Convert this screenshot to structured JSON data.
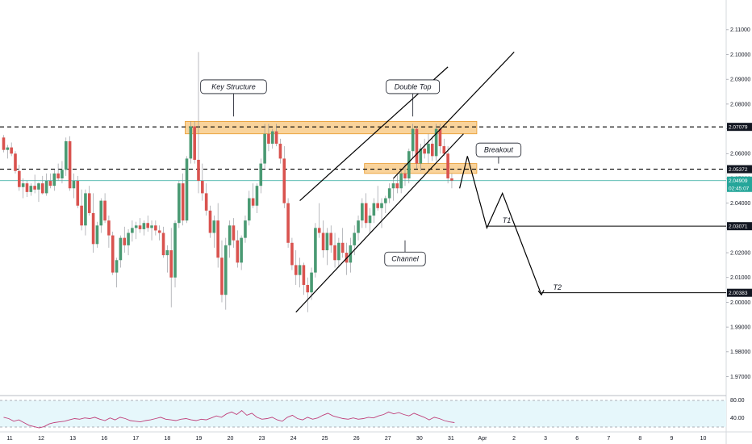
{
  "colors": {
    "bull": "#4a9a73",
    "bear": "#d9534f",
    "zone_fill": "#f7c47a",
    "zone_stroke": "#e89a2c",
    "rsi_line": "#c0407a",
    "rsi_fill": "#e6f7fb",
    "current_price": "#26a69a",
    "drawing": "#000000"
  },
  "chart_data": {
    "type": "candlestick",
    "instrument_axis": {
      "y_min": 1.963,
      "y_max": 2.122,
      "ticks": [
        "2.11000",
        "2.10000",
        "2.09000",
        "2.08000",
        "2.07000",
        "2.06000",
        "2.05000",
        "2.04000",
        "2.03000",
        "2.02000",
        "2.01000",
        "2.00000",
        "1.99000",
        "1.98000",
        "1.97000"
      ],
      "tick_values": [
        2.11,
        2.1,
        2.09,
        2.08,
        2.07,
        2.06,
        2.05,
        2.04,
        2.03,
        2.02,
        2.01,
        2.0,
        1.99,
        1.98,
        1.97
      ]
    },
    "x_axis": {
      "labels": [
        "11",
        "12",
        "13",
        "16",
        "17",
        "18",
        "19",
        "20",
        "23",
        "24",
        "25",
        "26",
        "27",
        "30",
        "31",
        "Apr",
        "2",
        "3",
        "6",
        "7",
        "8",
        "9",
        "10"
      ],
      "label_index": [
        0,
        8,
        16,
        24,
        32,
        40,
        48,
        56,
        64,
        72,
        80,
        88,
        96,
        104,
        112,
        120,
        128,
        136,
        144,
        152,
        160,
        168,
        176
      ]
    },
    "candles": [
      [
        2.0665,
        2.0675,
        2.0605,
        2.0615
      ],
      [
        2.0615,
        2.0635,
        2.058,
        2.0625
      ],
      [
        2.0625,
        2.0645,
        2.059,
        2.06
      ],
      [
        2.06,
        2.061,
        2.052,
        2.053
      ],
      [
        2.053,
        2.0555,
        2.045,
        2.0465
      ],
      [
        2.0465,
        2.05,
        2.042,
        2.048
      ],
      [
        2.048,
        2.049,
        2.0425,
        2.0445
      ],
      [
        2.0445,
        2.048,
        2.043,
        2.047
      ],
      [
        2.047,
        2.0515,
        2.044,
        2.0455
      ],
      [
        2.0455,
        2.0485,
        2.0405,
        2.048
      ],
      [
        2.048,
        2.051,
        2.0435,
        2.044
      ],
      [
        2.044,
        2.052,
        2.043,
        2.049
      ],
      [
        2.049,
        2.052,
        2.046,
        2.047
      ],
      [
        2.047,
        2.0535,
        2.045,
        2.052
      ],
      [
        2.052,
        2.056,
        2.049,
        2.05
      ],
      [
        2.05,
        2.057,
        2.048,
        2.0535
      ],
      [
        2.0535,
        2.0665,
        2.051,
        2.065
      ],
      [
        2.065,
        2.067,
        2.045,
        2.046
      ],
      [
        2.046,
        2.052,
        2.042,
        2.049
      ],
      [
        2.049,
        2.051,
        2.038,
        2.039
      ],
      [
        2.039,
        2.0455,
        2.029,
        2.031
      ],
      [
        2.031,
        2.0455,
        2.027,
        2.044
      ],
      [
        2.044,
        2.047,
        2.035,
        2.036
      ],
      [
        2.036,
        2.044,
        2.02,
        2.0235
      ],
      [
        2.0235,
        2.0325,
        2.022,
        2.031
      ],
      [
        2.031,
        2.042,
        2.028,
        2.041
      ],
      [
        2.041,
        2.044,
        2.032,
        2.033
      ],
      [
        2.033,
        2.035,
        2.022,
        2.027
      ],
      [
        2.027,
        2.0285,
        2.011,
        2.012
      ],
      [
        2.012,
        2.018,
        2.006,
        2.017
      ],
      [
        2.017,
        2.027,
        2.014,
        2.026
      ],
      [
        2.026,
        2.0305,
        2.02,
        2.023
      ],
      [
        2.023,
        2.0295,
        2.019,
        2.028
      ],
      [
        2.028,
        2.033,
        2.0245,
        2.03
      ],
      [
        2.03,
        2.0325,
        2.0255,
        2.031
      ],
      [
        2.031,
        2.034,
        2.028,
        2.0295
      ],
      [
        2.0295,
        2.033,
        2.027,
        2.032
      ],
      [
        2.032,
        2.035,
        2.0285,
        2.03
      ],
      [
        2.03,
        2.033,
        2.025,
        2.031
      ],
      [
        2.031,
        2.033,
        2.027,
        2.029
      ],
      [
        2.029,
        2.031,
        2.025,
        2.028
      ],
      [
        2.028,
        2.0305,
        2.018,
        2.019
      ],
      [
        2.019,
        2.023,
        2.012,
        2.021
      ],
      [
        2.021,
        2.03,
        1.998,
        2.01
      ],
      [
        2.01,
        2.033,
        2.006,
        2.032
      ],
      [
        2.032,
        2.049,
        2.03,
        2.048
      ],
      [
        2.048,
        2.052,
        2.031,
        2.033
      ],
      [
        2.033,
        2.059,
        2.032,
        2.058
      ],
      [
        2.058,
        2.073,
        2.056,
        2.071
      ],
      [
        2.071,
        2.073,
        2.056,
        2.0575
      ],
      [
        2.0575,
        2.101,
        2.044,
        2.049
      ],
      [
        2.049,
        2.056,
        2.041,
        2.044
      ],
      [
        2.044,
        2.048,
        2.035,
        2.037
      ],
      [
        2.037,
        2.039,
        2.026,
        2.028
      ],
      [
        2.028,
        2.035,
        2.022,
        2.033
      ],
      [
        2.033,
        2.04,
        2.014,
        2.018
      ],
      [
        2.018,
        2.025,
        2.0,
        2.003
      ],
      [
        2.003,
        2.026,
        1.997,
        2.023
      ],
      [
        2.023,
        2.033,
        2.018,
        2.031
      ],
      [
        2.031,
        2.034,
        2.022,
        2.025
      ],
      [
        2.025,
        2.029,
        2.014,
        2.016
      ],
      [
        2.016,
        2.027,
        2.013,
        2.026
      ],
      [
        2.026,
        2.035,
        2.024,
        2.033
      ],
      [
        2.033,
        2.045,
        2.031,
        2.042
      ],
      [
        2.042,
        2.048,
        2.038,
        2.039
      ],
      [
        2.039,
        2.048,
        2.036,
        2.047
      ],
      [
        2.047,
        2.058,
        2.044,
        2.056
      ],
      [
        2.056,
        2.072,
        2.054,
        2.068
      ],
      [
        2.068,
        2.072,
        2.061,
        2.064
      ],
      [
        2.064,
        2.07,
        2.062,
        2.069
      ],
      [
        2.069,
        2.072,
        2.063,
        2.064
      ],
      [
        2.064,
        2.066,
        2.056,
        2.058
      ],
      [
        2.058,
        2.063,
        2.038,
        2.04
      ],
      [
        2.04,
        2.042,
        2.022,
        2.024
      ],
      [
        2.024,
        2.026,
        2.013,
        2.015
      ],
      [
        2.015,
        2.021,
        2.007,
        2.011
      ],
      [
        2.011,
        2.018,
        2.006,
        2.015
      ],
      [
        2.015,
        2.016,
        2.003,
        2.007
      ],
      [
        2.007,
        2.01,
        1.996,
        2.004
      ],
      [
        2.004,
        2.014,
        2.001,
        2.012
      ],
      [
        2.012,
        2.032,
        2.01,
        2.03
      ],
      [
        2.03,
        2.04,
        2.026,
        2.028
      ],
      [
        2.028,
        2.033,
        2.018,
        2.021
      ],
      [
        2.021,
        2.03,
        2.015,
        2.028
      ],
      [
        2.028,
        2.031,
        2.02,
        2.023
      ],
      [
        2.023,
        2.028,
        2.014,
        2.017
      ],
      [
        2.017,
        2.026,
        2.014,
        2.024
      ],
      [
        2.024,
        2.03,
        2.018,
        2.02
      ],
      [
        2.02,
        2.024,
        2.011,
        2.016
      ],
      [
        2.016,
        2.026,
        2.012,
        2.023
      ],
      [
        2.023,
        2.031,
        2.019,
        2.028
      ],
      [
        2.028,
        2.035,
        2.025,
        2.033
      ],
      [
        2.033,
        2.042,
        2.03,
        2.04
      ],
      [
        2.04,
        2.044,
        2.03,
        2.032
      ],
      [
        2.032,
        2.038,
        2.028,
        2.035
      ],
      [
        2.035,
        2.042,
        2.032,
        2.04
      ],
      [
        2.04,
        2.047,
        2.037,
        2.038
      ],
      [
        2.038,
        2.042,
        2.03,
        2.04
      ],
      [
        2.04,
        2.043,
        2.036,
        2.042
      ],
      [
        2.042,
        2.048,
        2.04,
        2.046
      ],
      [
        2.046,
        2.05,
        2.041,
        2.048
      ],
      [
        2.048,
        2.052,
        2.044,
        2.046
      ],
      [
        2.046,
        2.053,
        2.044,
        2.052
      ],
      [
        2.052,
        2.056,
        2.047,
        2.05
      ],
      [
        2.05,
        2.062,
        2.048,
        2.061
      ],
      [
        2.061,
        2.072,
        2.058,
        2.07
      ],
      [
        2.07,
        2.071,
        2.054,
        2.056
      ],
      [
        2.056,
        2.064,
        2.053,
        2.062
      ],
      [
        2.062,
        2.066,
        2.058,
        2.06
      ],
      [
        2.06,
        2.068,
        2.056,
        2.064
      ],
      [
        2.064,
        2.067,
        2.057,
        2.059
      ],
      [
        2.059,
        2.072,
        2.057,
        2.07
      ],
      [
        2.07,
        2.072,
        2.06,
        2.063
      ],
      [
        2.063,
        2.066,
        2.059,
        2.06
      ],
      [
        2.06,
        2.063,
        2.048,
        2.05
      ],
      [
        2.05,
        2.052,
        2.046,
        2.0491
      ]
    ],
    "horizontal_levels": [
      {
        "price": 2.07079,
        "label": "2.07079",
        "style": "dashed"
      },
      {
        "price": 2.05372,
        "label": "2.05372",
        "style": "dashed"
      },
      {
        "price": 2.03071,
        "label": "2.03071",
        "style": "solid"
      },
      {
        "price": 2.00383,
        "label": "2.00383",
        "style": "solid"
      }
    ],
    "current_price": {
      "price": 2.04909,
      "label": "2.04909",
      "countdown": "02:45:07"
    },
    "zones": [
      {
        "i0": 47,
        "i1": 121,
        "p_low": 2.068,
        "p_high": 2.073
      },
      {
        "i0": 93,
        "i1": 121,
        "p_low": 2.052,
        "p_high": 2.056
      }
    ],
    "channel": {
      "lower": [
        [
          75,
          1.996
        ],
        [
          118,
          2.068
        ]
      ],
      "upper": [
        [
          76,
          2.041
        ],
        [
          114,
          2.095
        ]
      ],
      "upper_ext": [
        [
          100,
          2.05
        ],
        [
          131,
          2.101
        ]
      ]
    },
    "projection_path": [
      [
        117,
        2.046
      ],
      [
        119,
        2.059
      ],
      [
        124,
        2.03
      ],
      [
        128,
        2.044
      ],
      [
        138,
        2.003
      ]
    ],
    "annotations": [
      {
        "text": "Key Structure",
        "i": 59,
        "p": 2.087,
        "pointer_to": 2.075
      },
      {
        "text": "Double Top",
        "i": 105,
        "p": 2.087,
        "pointer_to": 2.075
      },
      {
        "text": "Breakout",
        "i": 127,
        "p": 2.0615,
        "pointer_to": 2.056
      },
      {
        "text": "Channel",
        "i": 103,
        "p": 2.0175,
        "pointer_to": 2.025
      },
      {
        "text": "T1",
        "i": 128,
        "p": 2.032
      },
      {
        "text": "T2",
        "i": 141,
        "p": 2.005
      }
    ],
    "rsi": {
      "ticks": [
        "80.00",
        "40.00"
      ],
      "tick_values": [
        80,
        40
      ],
      "band": [
        30,
        70
      ],
      "values": [
        52,
        50,
        46,
        48,
        44,
        40,
        38,
        36,
        38,
        42,
        44,
        45,
        46,
        48,
        50,
        49,
        51,
        50,
        52,
        49,
        47,
        51,
        48,
        52,
        50,
        47,
        46,
        45,
        47,
        48,
        50,
        52,
        49,
        48,
        47,
        49,
        50,
        48,
        47,
        49,
        48,
        51,
        54,
        52,
        57,
        60,
        56,
        62,
        55,
        58,
        52,
        49,
        50,
        52,
        48,
        46,
        52,
        55,
        50,
        48,
        52,
        49,
        51,
        55,
        58,
        54,
        52,
        50,
        49,
        51,
        49,
        50,
        52,
        51,
        54,
        56,
        60,
        57,
        59,
        56,
        54,
        58,
        55,
        52,
        48,
        52,
        50,
        47,
        45,
        44
      ]
    }
  }
}
